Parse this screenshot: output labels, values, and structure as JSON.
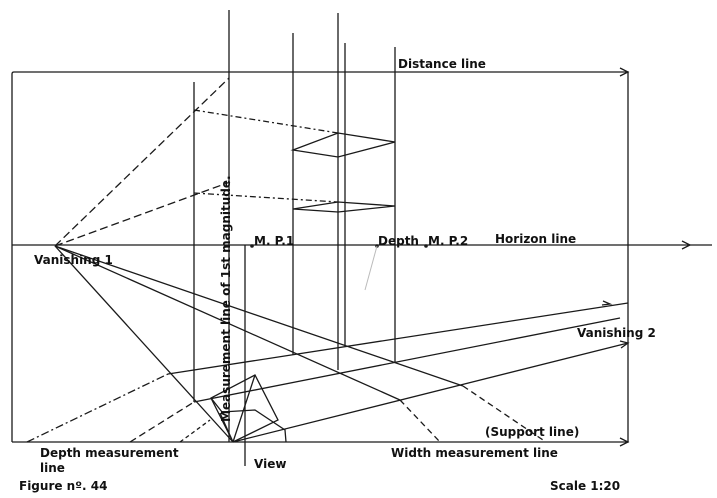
{
  "labels": {
    "distance_line": "Distance line",
    "horizon_line": "Horizon line",
    "vanishing_1": "Vanishing 1",
    "vanishing_2": "Vanishing 2",
    "mp1": "M. P.1",
    "mp2": "M. P.2",
    "depth": "Depth",
    "measurement_line": "Measurement line of 1st magnitude.",
    "depth_measurement_line_1": "Depth measurement",
    "depth_measurement_line_2": "line",
    "view": "View",
    "width_measurement_line": "Width measurement line",
    "support_line": "(Support line)",
    "figure": "Figure nº. 44",
    "scale": "Scale 1:20"
  },
  "colors": {
    "ink": "#1a1a1a",
    "background": "#ffffff"
  }
}
